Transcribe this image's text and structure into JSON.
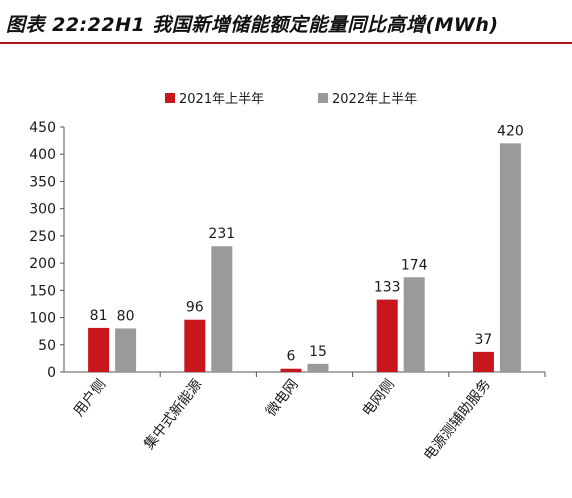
{
  "figure_title": "图表 22:22H1 我国新增储能额定能量同比高增(MWh)",
  "colors": {
    "series_2021": "#c8161d",
    "series_2022": "#9a9a9a",
    "title_rule": "#b0151d"
  },
  "chart_data": {
    "type": "bar",
    "categories": [
      "用户侧",
      "集中式新能源",
      "微电网",
      "电网侧",
      "电源测辅助服务"
    ],
    "series": [
      {
        "name": "2021年上半年",
        "values": [
          81,
          96,
          6,
          133,
          37
        ]
      },
      {
        "name": "2022年上半年",
        "values": [
          80,
          231,
          15,
          174,
          420
        ]
      }
    ],
    "y_ticks": [
      "0",
      "50",
      "100",
      "150",
      "200",
      "250",
      "300",
      "350",
      "400",
      "450"
    ],
    "ylim": [
      0,
      450
    ],
    "legend_position": "top-center",
    "grid": false,
    "data_labels": true,
    "xlabel": "",
    "ylabel": ""
  }
}
